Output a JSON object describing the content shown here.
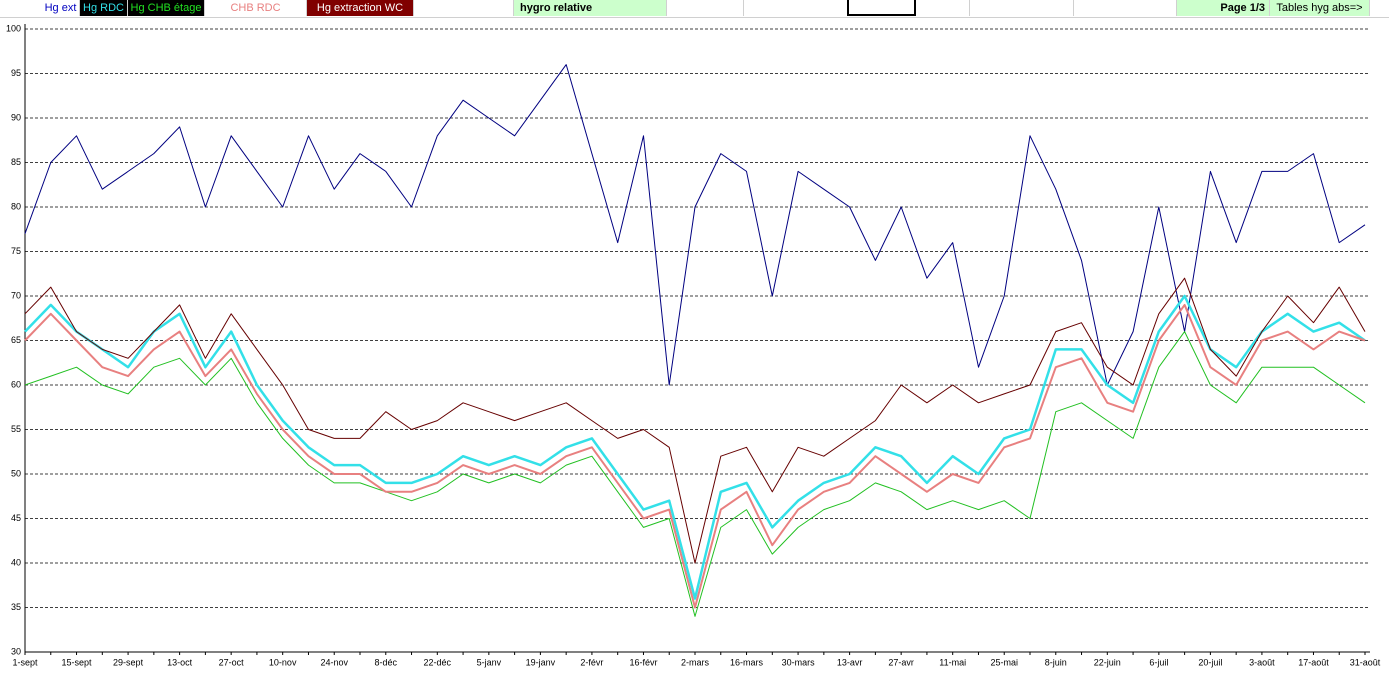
{
  "header": {
    "title": "hygro relative",
    "page": "Page 1/3",
    "link": "Tables hyg abs=>"
  },
  "chart_data": {
    "type": "line",
    "categories": [
      "1-sept",
      null,
      "15-sept",
      null,
      "29-sept",
      null,
      "13-oct",
      null,
      "27-oct",
      null,
      "10-nov",
      null,
      "24-nov",
      null,
      "8-déc",
      null,
      "22-déc",
      null,
      "5-janv",
      null,
      "19-janv",
      null,
      "2-févr",
      null,
      "16-févr",
      null,
      "2-mars",
      null,
      "16-mars",
      null,
      "30-mars",
      null,
      "13-avr",
      null,
      "27-avr",
      null,
      "11-mai",
      null,
      "25-mai",
      null,
      "8-juin",
      null,
      "22-juin",
      null,
      "6-juil",
      null,
      "20-juil",
      null,
      "3-août",
      null,
      "17-août",
      null,
      "31-août"
    ],
    "series": [
      {
        "name": "Hg ext",
        "color": "#000080",
        "values": [
          77,
          85,
          88,
          82,
          84,
          86,
          89,
          80,
          88,
          84,
          80,
          88,
          82,
          86,
          84,
          80,
          88,
          92,
          90,
          88,
          92,
          96,
          86,
          76,
          88,
          60,
          80,
          86,
          84,
          70,
          84,
          82,
          80,
          74,
          80,
          72,
          76,
          62,
          70,
          88,
          82,
          74,
          60,
          66,
          80,
          66,
          84,
          76,
          84,
          84,
          86,
          76,
          78
        ]
      },
      {
        "name": "Hg RDC",
        "color": "#33e0e8",
        "values": [
          66,
          69,
          66,
          64,
          62,
          66,
          68,
          62,
          66,
          60,
          56,
          53,
          51,
          51,
          49,
          49,
          50,
          52,
          51,
          52,
          51,
          53,
          54,
          50,
          46,
          47,
          36,
          48,
          49,
          44,
          47,
          49,
          50,
          53,
          52,
          49,
          52,
          50,
          54,
          55,
          64,
          64,
          60,
          58,
          66,
          70,
          64,
          62,
          66,
          68,
          66,
          67,
          65
        ]
      },
      {
        "name": "Hg CHB étage",
        "color": "#22c022",
        "values": [
          60,
          61,
          62,
          60,
          59,
          62,
          63,
          60,
          63,
          58,
          54,
          51,
          49,
          49,
          48,
          47,
          48,
          50,
          49,
          50,
          49,
          51,
          52,
          48,
          44,
          45,
          34,
          44,
          46,
          41,
          44,
          46,
          47,
          49,
          48,
          46,
          47,
          46,
          47,
          45,
          57,
          58,
          56,
          54,
          62,
          66,
          60,
          58,
          62,
          62,
          62,
          60,
          58
        ]
      },
      {
        "name": "CHB RDC",
        "color": "#e88080",
        "values": [
          65,
          68,
          65,
          62,
          61,
          64,
          66,
          61,
          64,
          59,
          55,
          52,
          50,
          50,
          48,
          48,
          49,
          51,
          50,
          51,
          50,
          52,
          53,
          49,
          45,
          46,
          35,
          46,
          48,
          42,
          46,
          48,
          49,
          52,
          50,
          48,
          50,
          49,
          53,
          54,
          62,
          63,
          58,
          57,
          65,
          69,
          62,
          60,
          65,
          66,
          64,
          66,
          65
        ]
      },
      {
        "name": "Hg extraction WC",
        "color": "#660000",
        "values": [
          68,
          71,
          66,
          64,
          63,
          66,
          69,
          63,
          68,
          64,
          60,
          55,
          54,
          54,
          57,
          55,
          56,
          58,
          57,
          56,
          57,
          58,
          56,
          54,
          55,
          53,
          40,
          52,
          53,
          48,
          53,
          52,
          54,
          56,
          60,
          58,
          60,
          58,
          59,
          60,
          66,
          67,
          62,
          60,
          68,
          72,
          64,
          61,
          66,
          70,
          67,
          71,
          66
        ]
      }
    ],
    "ylim": [
      30,
      100
    ],
    "yticks": [
      30,
      35,
      40,
      45,
      50,
      55,
      60,
      65,
      70,
      75,
      80,
      85,
      90,
      95,
      100
    ],
    "grid": true
  }
}
